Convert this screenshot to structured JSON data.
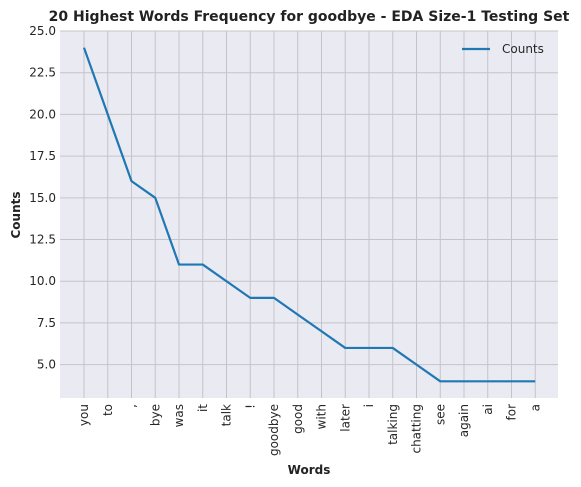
{
  "chart_data": {
    "type": "line",
    "title": "20 Highest Words Frequency for goodbye - EDA Size-1 Testing Set",
    "xlabel": "Words",
    "ylabel": "Counts",
    "categories": [
      "you",
      "to",
      ",",
      "bye",
      "was",
      "it",
      "talk",
      "!",
      "goodbye",
      "good",
      "with",
      "later",
      "i",
      "talking",
      "chatting",
      "see",
      "again",
      "ai",
      "for",
      "a"
    ],
    "series": [
      {
        "name": "Counts",
        "values": [
          24,
          20,
          16,
          15,
          11,
          11,
          10,
          9,
          9,
          8,
          7,
          6,
          6,
          6,
          5,
          4,
          4,
          4,
          4,
          4
        ]
      }
    ],
    "ylim": [
      3.0,
      25.0
    ],
    "yticks": [
      5.0,
      7.5,
      10.0,
      12.5,
      15.0,
      17.5,
      20.0,
      22.5,
      25.0
    ],
    "ytick_labels": [
      "5.0",
      "7.5",
      "10.0",
      "12.5",
      "15.0",
      "17.5",
      "20.0",
      "22.5",
      "25.0"
    ],
    "grid": true,
    "legend_position": "top-right",
    "colors": {
      "line": "#1f77b4",
      "background": "#eaeaf2",
      "grid": "#c4c4c8"
    }
  }
}
